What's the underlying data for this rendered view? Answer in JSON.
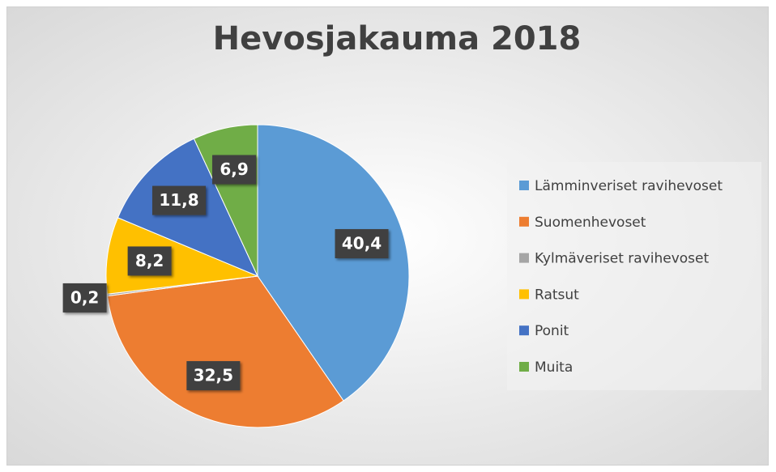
{
  "chart_data": {
    "type": "pie",
    "title": "Hevosjakauma 2018",
    "categories": [
      "Lämminveriset ravihevoset",
      "Suomenhevoset",
      "Kylmäveriset ravihevoset",
      "Ratsut",
      "Ponit",
      "Muita"
    ],
    "values": [
      40.4,
      32.5,
      0.2,
      8.2,
      11.8,
      6.9
    ],
    "value_labels": [
      "40,4",
      "32,5",
      "0,2",
      "8,2",
      "11,8",
      "6,9"
    ],
    "colors": [
      "#5b9bd5",
      "#ed7d31",
      "#a5a5a5",
      "#ffc000",
      "#4472c4",
      "#70ad47"
    ],
    "legend": "right"
  }
}
